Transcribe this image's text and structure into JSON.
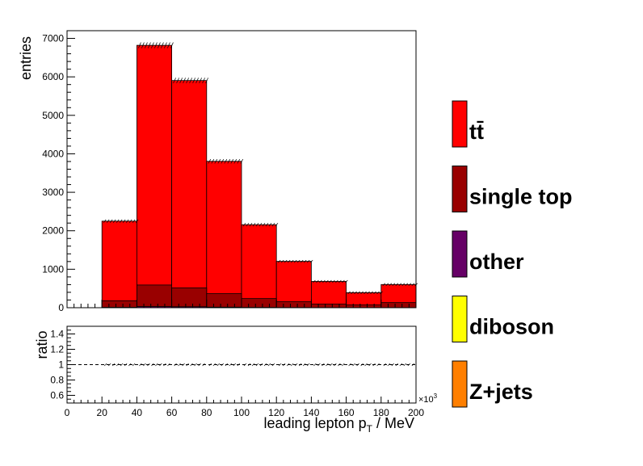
{
  "chart_data": [
    {
      "type": "bar",
      "stacked": true,
      "ylabel": "entries",
      "xlim": [
        0,
        200
      ],
      "ylim": [
        0,
        7200
      ],
      "bin_edges": [
        20,
        40,
        60,
        80,
        100,
        120,
        140,
        160,
        180,
        200
      ],
      "yticks": [
        "0",
        "1000",
        "2000",
        "3000",
        "4000",
        "5000",
        "6000",
        "7000"
      ],
      "legend_position": "right",
      "series": [
        {
          "name": "Z+jets",
          "color": "#ff7f00",
          "values": [
            0,
            0,
            0,
            0,
            0,
            0,
            0,
            0,
            0
          ]
        },
        {
          "name": "diboson",
          "color": "#ffff00",
          "values": [
            0,
            0,
            0,
            0,
            0,
            0,
            0,
            0,
            0
          ]
        },
        {
          "name": "other",
          "color": "#660066",
          "values": [
            10,
            30,
            25,
            15,
            8,
            5,
            3,
            2,
            3
          ]
        },
        {
          "name": "single top",
          "color": "#990000",
          "values": [
            170,
            560,
            490,
            350,
            230,
            150,
            90,
            70,
            130
          ]
        },
        {
          "name": "tt̄",
          "color": "#ff0000",
          "values": [
            2070,
            6230,
            5390,
            3440,
            1920,
            1050,
            590,
            320,
            470
          ]
        }
      ],
      "totals": [
        2250,
        6820,
        5905,
        3805,
        2158,
        1205,
        683,
        392,
        603
      ]
    },
    {
      "type": "line",
      "ylabel": "ratio",
      "xlabel_main": "leading lepton p",
      "xlabel_sub": "T",
      "xlabel_unit": " / MeV",
      "x_multiplier": "×10",
      "x_multiplier_exp": "3",
      "xlim": [
        0,
        200
      ],
      "ylim": [
        0.5,
        1.5
      ],
      "xticks": [
        "0",
        "20",
        "40",
        "60",
        "80",
        "100",
        "120",
        "140",
        "160",
        "180",
        "200"
      ],
      "yticks": [
        "0.6",
        "0.8",
        "1",
        "1.2",
        "1.4"
      ],
      "reference_line": 1.0,
      "line_style": "dashed"
    }
  ]
}
